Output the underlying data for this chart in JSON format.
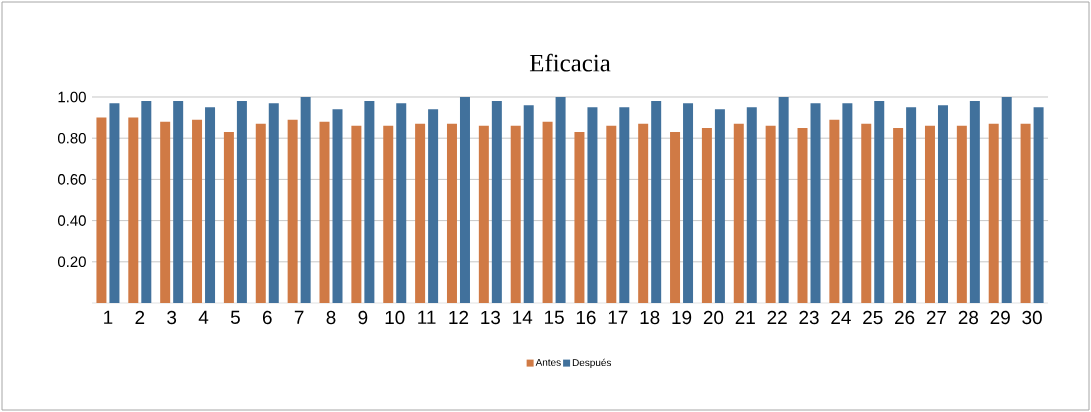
{
  "chart_data": {
    "type": "bar",
    "title": "Eficacia",
    "categories": [
      "1",
      "2",
      "3",
      "4",
      "5",
      "6",
      "7",
      "8",
      "9",
      "10",
      "11",
      "12",
      "13",
      "14",
      "15",
      "16",
      "17",
      "18",
      "19",
      "20",
      "21",
      "22",
      "23",
      "24",
      "25",
      "26",
      "27",
      "28",
      "29",
      "30"
    ],
    "series": [
      {
        "name": "Antes",
        "color": "#d07a45",
        "values": [
          0.9,
          0.9,
          0.88,
          0.89,
          0.83,
          0.87,
          0.89,
          0.88,
          0.86,
          0.86,
          0.87,
          0.87,
          0.86,
          0.86,
          0.88,
          0.83,
          0.86,
          0.87,
          0.83,
          0.85,
          0.87,
          0.86,
          0.85,
          0.89,
          0.87,
          0.85,
          0.86,
          0.86,
          0.87,
          0.87
        ]
      },
      {
        "name": "Después",
        "color": "#41719c",
        "values": [
          0.97,
          0.98,
          0.98,
          0.95,
          0.98,
          0.97,
          1.0,
          0.94,
          0.98,
          0.97,
          0.94,
          1.0,
          0.98,
          0.96,
          1.0,
          0.95,
          0.95,
          0.98,
          0.97,
          0.94,
          0.95,
          1.0,
          0.97,
          0.97,
          0.98,
          0.95,
          0.96,
          0.98,
          1.0,
          0.95
        ]
      }
    ],
    "ylim": [
      0,
      1
    ],
    "yticks": [
      {
        "value": 0.2,
        "label": "0.20"
      },
      {
        "value": 0.4,
        "label": "0.40"
      },
      {
        "value": 0.6,
        "label": "0.60"
      },
      {
        "value": 0.8,
        "label": "0.80"
      },
      {
        "value": 1.0,
        "label": "1.00"
      }
    ],
    "grid": "y",
    "legend": "bottom"
  }
}
